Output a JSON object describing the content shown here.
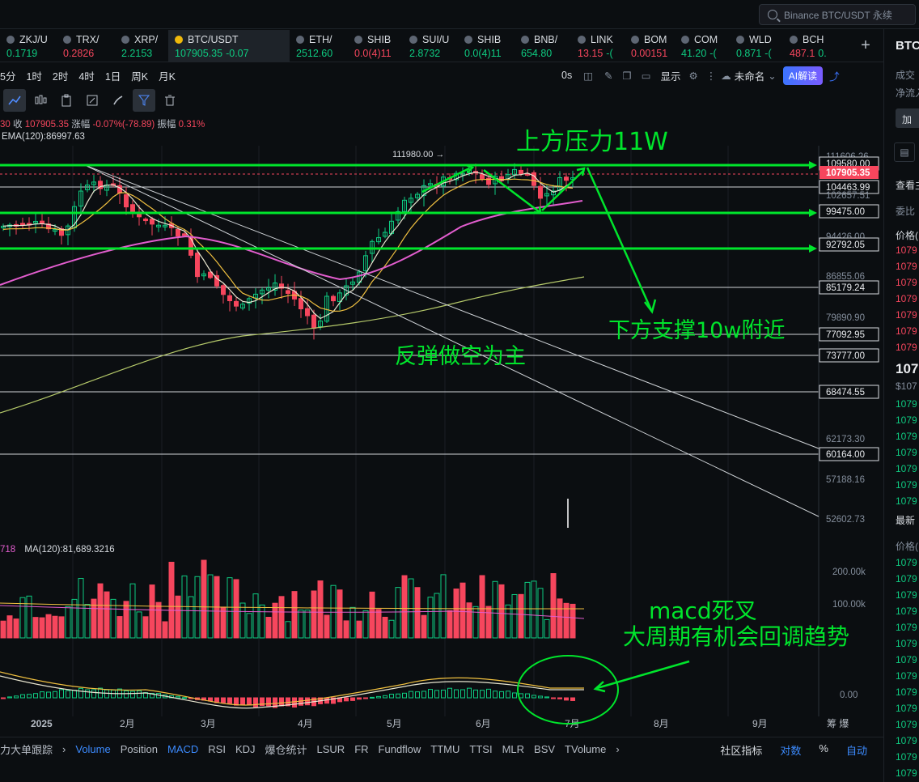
{
  "search": {
    "placeholder": "Binance BTC/USDT 永续"
  },
  "tickers": [
    {
      "name": "ZKJ/U",
      "price": "0.1719",
      "dir": "up"
    },
    {
      "name": "TRX/",
      "price": "0.2826",
      "dir": "dn"
    },
    {
      "name": "XRP/",
      "price": "2.2153",
      "dir": "up"
    },
    {
      "name": "BTC/USDT",
      "price": "107905.35",
      "change": "-0.07",
      "dir": "up"
    },
    {
      "name": "ETH/",
      "price": "2512.60",
      "dir": "up"
    },
    {
      "name": "SHIB",
      "price": "0.0(4)11",
      "dir": "dn"
    },
    {
      "name": "SUI/U",
      "price": "2.8732",
      "dir": "up"
    },
    {
      "name": "SHIB",
      "price": "0.0(4)11",
      "dir": "up"
    },
    {
      "name": "BNB/",
      "price": "654.80",
      "dir": "up"
    },
    {
      "name": "LINK",
      "price": "13.15",
      "change": "-(",
      "dir": "dn"
    },
    {
      "name": "BOM",
      "price": "0.00151",
      "dir": "dn"
    },
    {
      "name": "COM",
      "price": "41.20",
      "change": "-(",
      "dir": "up"
    },
    {
      "name": "WLD",
      "price": "0.871",
      "change": "-(",
      "dir": "up"
    },
    {
      "name": "BCH",
      "price": "487.1",
      "change": "0.",
      "dir": "dn"
    }
  ],
  "timeframes": [
    "5分",
    "1时",
    "2时",
    "4时",
    "1日",
    "周K",
    "月K"
  ],
  "toolbar": {
    "seconds": "0s",
    "display": "显示",
    "layout": "未命名",
    "ai": "AI解读"
  },
  "ohlc": {
    "prefix": "30",
    "close_label": "收",
    "close": "107905.35",
    "change_label": "涨幅",
    "change": "-0.07%(-78.89)",
    "amp_label": "振幅",
    "amp": "0.31%"
  },
  "ema_label": "EMA(120):86997.63",
  "vol_ma_label": "MA(120):81,689.3216",
  "vol_prefix": "718",
  "high_marker": "111980.00",
  "price_scale": [
    "111606.26",
    "109580.00",
    "104463.99",
    "102657.51",
    "99475.00",
    "94426.00",
    "92792.05",
    "86855.06",
    "85179.24",
    "79890.90",
    "77092.95",
    "73777.00",
    "68474.55",
    "62173.30",
    "60164.00",
    "57188.16",
    "52602.73"
  ],
  "current_price": "107905.35",
  "vol_scale": [
    "200.00k",
    "100.00k"
  ],
  "macd_scale": [
    "0.00"
  ],
  "x_axis": [
    "2025",
    "2月",
    "3月",
    "4月",
    "5月",
    "6月",
    "7月",
    "8月",
    "9月"
  ],
  "x_axis_right": "筹 爆",
  "annotations": {
    "resistance": "上方压力11W",
    "support": "下方支撑10w附近",
    "strategy": "反弹做空为主",
    "macd": "macd死叉",
    "pullback": "大周期有机会回调趋势"
  },
  "bottom_tabs": [
    "力大单跟踪",
    "Volume",
    "Position",
    "MACD",
    "RSI",
    "KDJ",
    "爆仓统计",
    "LSUR",
    "FR",
    "Fundflow",
    "TTMU",
    "TTSI",
    "MLR",
    "BSV",
    "TVolume"
  ],
  "bottom_right": {
    "community": "社区指标",
    "log": "对数",
    "pct": "%",
    "auto": "自动"
  },
  "panel": {
    "title": "BTC",
    "l1": "成交",
    "l2": "净流入",
    "btn": "加",
    "view": "查看主",
    "ratio": "委比",
    "price_hdr": "价格(",
    "ask": "1079",
    "last": "107",
    "last_sub": "$107",
    "latest": "最新",
    "price_hdr2": "价格("
  }
}
